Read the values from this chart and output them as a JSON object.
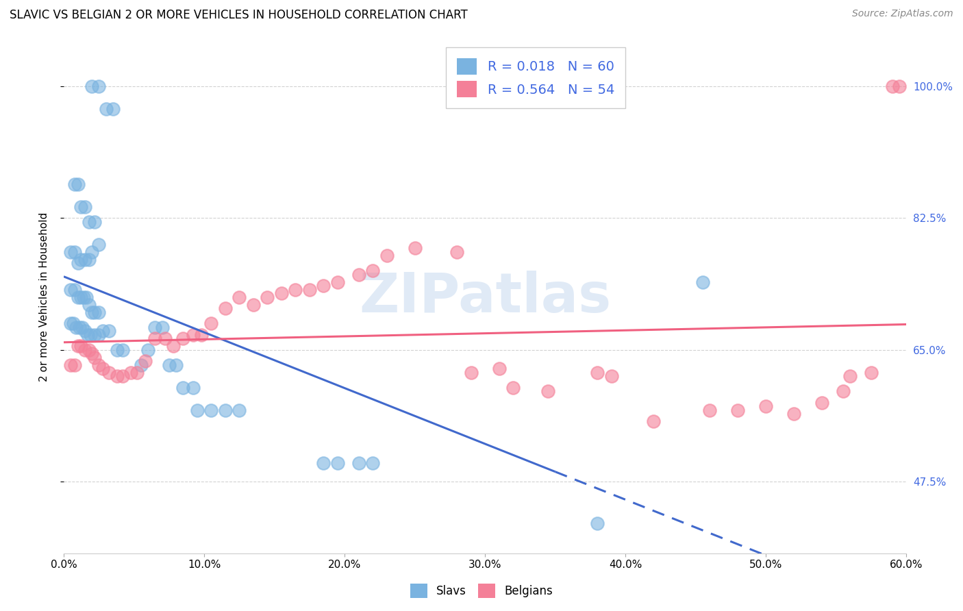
{
  "title": "SLAVIC VS BELGIAN 2 OR MORE VEHICLES IN HOUSEHOLD CORRELATION CHART",
  "source": "Source: ZipAtlas.com",
  "xlim": [
    0.0,
    0.6
  ],
  "ylim": [
    0.38,
    1.06
  ],
  "ylabel": "2 or more Vehicles in Household",
  "ytick_vals": [
    0.475,
    0.65,
    0.825,
    1.0
  ],
  "ytick_labels": [
    "47.5%",
    "65.0%",
    "82.5%",
    "100.0%"
  ],
  "xtick_vals": [
    0.0,
    0.1,
    0.2,
    0.3,
    0.4,
    0.5,
    0.6
  ],
  "xtick_labels": [
    "0.0%",
    "10.0%",
    "20.0%",
    "30.0%",
    "40.0%",
    "50.0%",
    "60.0%"
  ],
  "slavs_color": "#7ab3e0",
  "belgians_color": "#f48098",
  "trendline_slavs_color": "#4169cc",
  "trendline_belgians_color": "#f06080",
  "watermark": "ZIPatlas",
  "tick_color": "#4169e1",
  "legend_R_slavs": "R = 0.018",
  "legend_N_slavs": "N = 60",
  "legend_R_belgians": "R = 0.564",
  "legend_N_belgians": "N = 54",
  "slavs_x": [
    0.02,
    0.025,
    0.03,
    0.035,
    0.008,
    0.01,
    0.015,
    0.012,
    0.018,
    0.022,
    0.005,
    0.008,
    0.01,
    0.012,
    0.015,
    0.018,
    0.02,
    0.025,
    0.005,
    0.008,
    0.01,
    0.012,
    0.014,
    0.016,
    0.018,
    0.02,
    0.022,
    0.025,
    0.005,
    0.007,
    0.009,
    0.011,
    0.013,
    0.015,
    0.017,
    0.019,
    0.022,
    0.025,
    0.028,
    0.032,
    0.038,
    0.042,
    0.055,
    0.06,
    0.065,
    0.07,
    0.075,
    0.08,
    0.085,
    0.092,
    0.095,
    0.105,
    0.115,
    0.125,
    0.185,
    0.195,
    0.21,
    0.22,
    0.455,
    0.38
  ],
  "slavs_y": [
    1.0,
    1.0,
    0.97,
    0.97,
    0.87,
    0.87,
    0.84,
    0.84,
    0.82,
    0.82,
    0.78,
    0.78,
    0.765,
    0.77,
    0.77,
    0.77,
    0.78,
    0.79,
    0.73,
    0.73,
    0.72,
    0.72,
    0.72,
    0.72,
    0.71,
    0.7,
    0.7,
    0.7,
    0.685,
    0.685,
    0.68,
    0.68,
    0.68,
    0.675,
    0.67,
    0.67,
    0.67,
    0.67,
    0.675,
    0.675,
    0.65,
    0.65,
    0.63,
    0.65,
    0.68,
    0.68,
    0.63,
    0.63,
    0.6,
    0.6,
    0.57,
    0.57,
    0.57,
    0.57,
    0.5,
    0.5,
    0.5,
    0.5,
    0.74,
    0.42
  ],
  "belgians_x": [
    0.005,
    0.008,
    0.01,
    0.012,
    0.015,
    0.018,
    0.02,
    0.022,
    0.025,
    0.028,
    0.032,
    0.038,
    0.042,
    0.048,
    0.052,
    0.058,
    0.065,
    0.072,
    0.078,
    0.085,
    0.092,
    0.098,
    0.105,
    0.115,
    0.125,
    0.135,
    0.145,
    0.155,
    0.165,
    0.175,
    0.185,
    0.195,
    0.21,
    0.22,
    0.23,
    0.25,
    0.28,
    0.29,
    0.31,
    0.32,
    0.345,
    0.38,
    0.39,
    0.42,
    0.46,
    0.48,
    0.5,
    0.52,
    0.54,
    0.555,
    0.56,
    0.575,
    0.59,
    0.595
  ],
  "belgians_y": [
    0.63,
    0.63,
    0.655,
    0.655,
    0.65,
    0.65,
    0.645,
    0.64,
    0.63,
    0.625,
    0.62,
    0.615,
    0.615,
    0.62,
    0.62,
    0.635,
    0.665,
    0.665,
    0.655,
    0.665,
    0.67,
    0.67,
    0.685,
    0.705,
    0.72,
    0.71,
    0.72,
    0.725,
    0.73,
    0.73,
    0.735,
    0.74,
    0.75,
    0.755,
    0.775,
    0.785,
    0.78,
    0.62,
    0.625,
    0.6,
    0.595,
    0.62,
    0.615,
    0.555,
    0.57,
    0.57,
    0.575,
    0.565,
    0.58,
    0.595,
    0.615,
    0.62,
    1.0,
    1.0
  ]
}
